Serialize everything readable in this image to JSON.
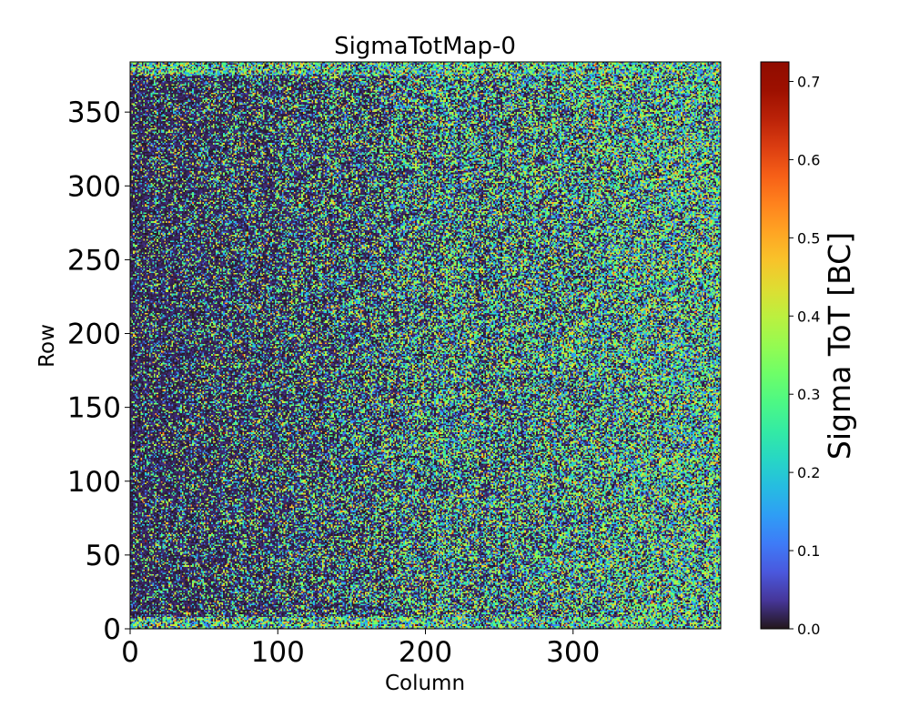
{
  "chart_data": {
    "type": "heatmap",
    "title": "SigmaTotMap-0",
    "xlabel": "Column",
    "ylabel": "Row",
    "colorbar_label": "Sigma ToT [BC]",
    "xlim": [
      0,
      400
    ],
    "ylim": [
      0,
      384
    ],
    "clim": [
      0.0,
      0.725
    ],
    "colormap": "turbo",
    "x_ticks": [
      0,
      100,
      200,
      300
    ],
    "x_tick_labels": [
      "0",
      "100",
      "200",
      "300"
    ],
    "y_ticks": [
      0,
      50,
      100,
      150,
      200,
      250,
      300,
      350
    ],
    "y_tick_labels": [
      "0",
      "50",
      "100",
      "150",
      "200",
      "250",
      "300",
      "350"
    ],
    "colorbar_ticks": [
      0.0,
      0.1,
      0.2,
      0.3,
      0.4,
      0.5,
      0.6,
      0.7
    ],
    "colorbar_tick_labels": [
      "0.0",
      "0.1",
      "0.2",
      "0.3",
      "0.4",
      "0.5",
      "0.6",
      "0.7"
    ],
    "grid": false,
    "description_of_values": {
      "typical_range": [
        0.0,
        0.45
      ],
      "left_region_mean_approx": 0.1,
      "right_region_mean_approx": 0.3,
      "edge_rows_mean_approx": 0.35
    }
  }
}
